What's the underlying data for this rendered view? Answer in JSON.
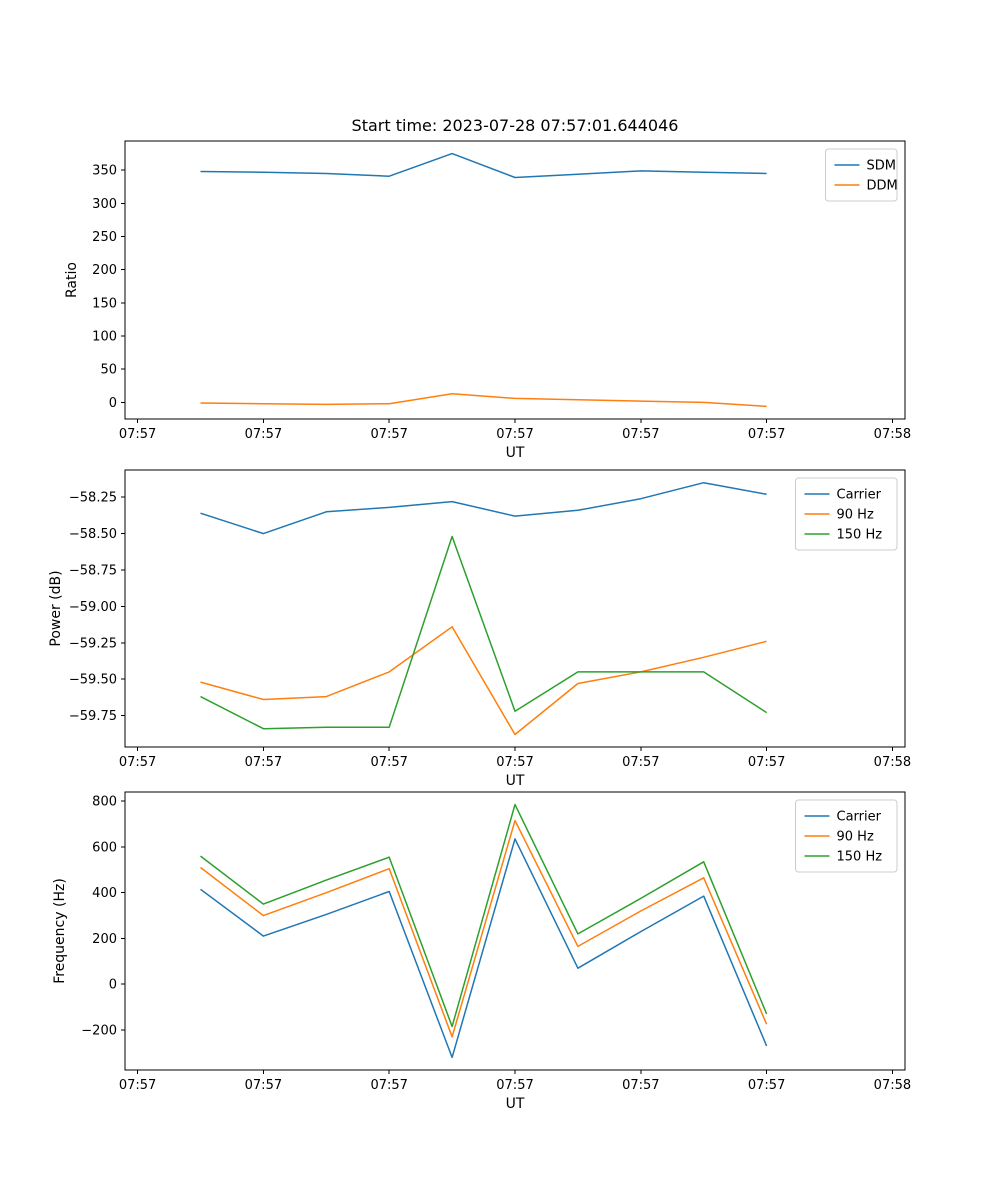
{
  "colors": {
    "blue": "#1f77b4",
    "orange": "#ff7f0e",
    "green": "#2ca02c"
  },
  "chart_data": [
    {
      "type": "line",
      "name": "ratio",
      "title": "Start time: 2023-07-28 07:57:01.644046",
      "xlabel": "UT",
      "ylabel": "Ratio",
      "x": [
        5,
        10,
        15,
        20,
        25,
        30,
        35,
        40,
        45,
        50
      ],
      "xlim": [
        -1,
        61
      ],
      "ylim": [
        -25.05,
        394.05
      ],
      "xtick_values": [
        0,
        10,
        20,
        30,
        40,
        50,
        60
      ],
      "xtick_labels": [
        "07:57",
        "07:57",
        "07:57",
        "07:57",
        "07:57",
        "07:57",
        "07:58"
      ],
      "ytick_values": [
        0,
        50,
        100,
        150,
        200,
        250,
        300,
        350
      ],
      "ytick_labels": [
        "0",
        "50",
        "100",
        "150",
        "200",
        "250",
        "300",
        "350"
      ],
      "legend_position": "upper right",
      "series": [
        {
          "name": "SDM",
          "color": "blue",
          "values": [
            348,
            347,
            345,
            341,
            375,
            339,
            344,
            349,
            347,
            345
          ]
        },
        {
          "name": "DDM",
          "color": "orange",
          "values": [
            -1,
            -2,
            -3,
            -2,
            13,
            6,
            4,
            2,
            0,
            -6
          ]
        }
      ]
    },
    {
      "type": "line",
      "name": "power",
      "title": "",
      "xlabel": "UT",
      "ylabel": "Power (dB)",
      "x": [
        5,
        10,
        15,
        20,
        25,
        30,
        35,
        40,
        45,
        50
      ],
      "xlim": [
        -1,
        61
      ],
      "ylim": [
        -59.966,
        -58.063
      ],
      "xtick_values": [
        0,
        10,
        20,
        30,
        40,
        50,
        60
      ],
      "xtick_labels": [
        "07:57",
        "07:57",
        "07:57",
        "07:57",
        "07:57",
        "07:57",
        "07:58"
      ],
      "ytick_values": [
        -59.75,
        -59.5,
        -59.25,
        -59.0,
        -58.75,
        -58.5,
        -58.25
      ],
      "ytick_labels": [
        "−59.75",
        "−59.50",
        "−59.25",
        "−59.00",
        "−58.75",
        "−58.50",
        "−58.25"
      ],
      "legend_position": "upper right",
      "series": [
        {
          "name": "Carrier",
          "color": "blue",
          "values": [
            -58.36,
            -58.5,
            -58.35,
            -58.32,
            -58.28,
            -58.38,
            -58.34,
            -58.26,
            -58.15,
            -58.23
          ]
        },
        {
          "name": "90 Hz",
          "color": "orange",
          "values": [
            -59.52,
            -59.64,
            -59.62,
            -59.45,
            -59.14,
            -59.88,
            -59.53,
            -59.45,
            -59.35,
            -59.24
          ]
        },
        {
          "name": "150 Hz",
          "color": "green",
          "values": [
            -59.62,
            -59.84,
            -59.83,
            -59.83,
            -58.52,
            -59.72,
            -59.45,
            -59.45,
            -59.45,
            -59.73
          ]
        }
      ]
    },
    {
      "type": "line",
      "name": "frequency",
      "title": "",
      "xlabel": "UT",
      "ylabel": "Frequency (Hz)",
      "x": [
        5,
        10,
        15,
        20,
        25,
        30,
        35,
        40,
        45,
        50
      ],
      "xlim": [
        -1,
        61
      ],
      "ylim": [
        -375.25,
        840.25
      ],
      "xtick_values": [
        0,
        10,
        20,
        30,
        40,
        50,
        60
      ],
      "xtick_labels": [
        "07:57",
        "07:57",
        "07:57",
        "07:57",
        "07:57",
        "07:57",
        "07:58"
      ],
      "ytick_values": [
        -200,
        0,
        200,
        400,
        600,
        800
      ],
      "ytick_labels": [
        "−200",
        "0",
        "200",
        "400",
        "600",
        "800"
      ],
      "legend_position": "upper right",
      "series": [
        {
          "name": "Carrier",
          "color": "blue",
          "values": [
            415,
            210,
            305,
            405,
            -320,
            635,
            70,
            230,
            385,
            -270
          ]
        },
        {
          "name": "90 Hz",
          "color": "orange",
          "values": [
            510,
            300,
            400,
            505,
            -230,
            715,
            165,
            320,
            465,
            -175
          ]
        },
        {
          "name": "150 Hz",
          "color": "green",
          "values": [
            560,
            350,
            455,
            555,
            -185,
            785,
            220,
            375,
            535,
            -130
          ]
        }
      ]
    }
  ]
}
